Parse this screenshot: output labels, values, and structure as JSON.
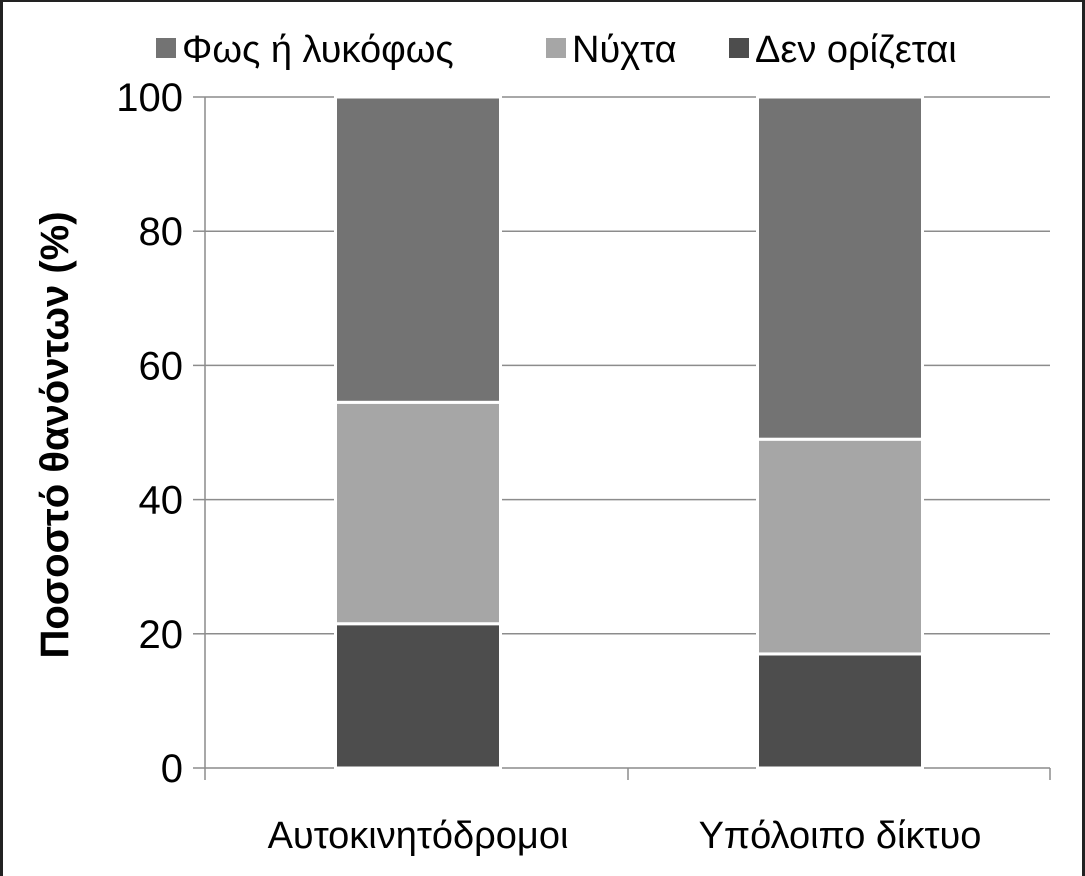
{
  "chart_data": {
    "type": "bar",
    "stacked": true,
    "title": "",
    "xlabel": "",
    "ylabel": "Ποσοστό θανόντων (%)",
    "ylim": [
      0,
      100
    ],
    "yticks": [
      0,
      20,
      40,
      60,
      80,
      100
    ],
    "grid": true,
    "legend_position": "top",
    "categories": [
      "Αυτοκινητόδρομοι",
      "Υπόλοιπο δίκτυο"
    ],
    "series": [
      {
        "name": "Δεν ορίζεται",
        "color": "#4d4d4d",
        "values": [
          21.5,
          17
        ]
      },
      {
        "name": "Νύχτα",
        "color": "#a6a6a6",
        "values": [
          33,
          32
        ]
      },
      {
        "name": "Φως ή λυκόφως",
        "color": "#737373",
        "values": [
          45.5,
          51
        ]
      }
    ],
    "legend_order": [
      "Φως ή λυκόφως",
      "Νύχτα",
      "Δεν ορίζεται"
    ]
  }
}
